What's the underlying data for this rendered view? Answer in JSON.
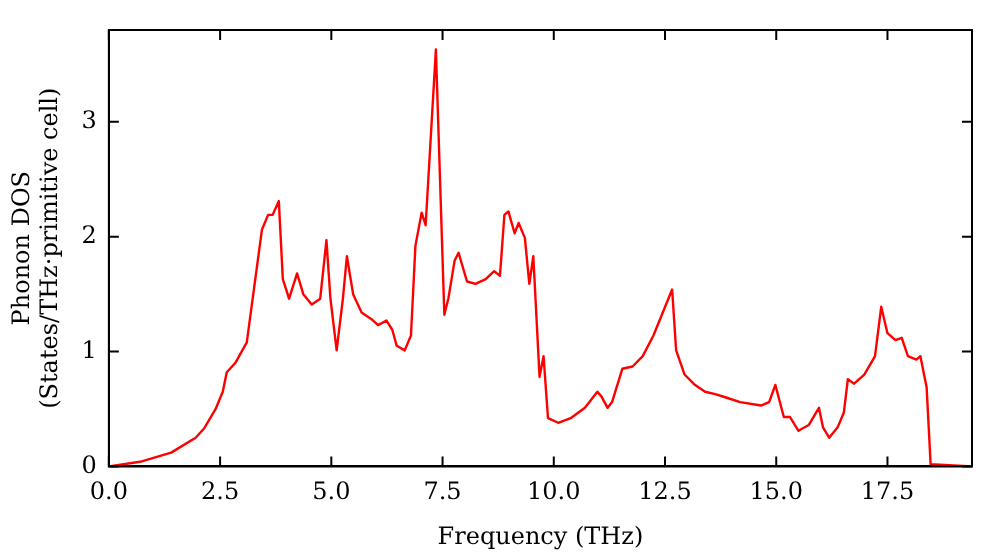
{
  "chart_data": {
    "type": "line",
    "xlabel": "Frequency (THz)",
    "ylabel": "Phonon DOS\n(States/THz·primitive cell)",
    "xlim": [
      0,
      19.4
    ],
    "ylim": [
      0,
      3.8
    ],
    "xticks": [
      {
        "value": 0,
        "label": "0.0"
      },
      {
        "value": 2.5,
        "label": "2.5"
      },
      {
        "value": 5,
        "label": "5.0"
      },
      {
        "value": 7.5,
        "label": "7.5"
      },
      {
        "value": 10,
        "label": "10.0"
      },
      {
        "value": 12.5,
        "label": "12.5"
      },
      {
        "value": 15,
        "label": "15.0"
      },
      {
        "value": 17.5,
        "label": "17.5"
      }
    ],
    "yticks": [
      0,
      1,
      2,
      3
    ],
    "grid": false,
    "legend": false,
    "marker": "none",
    "line_style": "solid",
    "series": [
      {
        "color": "#ff0000",
        "x": [
          0,
          0.7,
          1.4,
          1.95,
          2.14,
          2.4,
          2.56,
          2.65,
          2.84,
          3.1,
          3.44,
          3.58,
          3.68,
          3.82,
          3.91,
          4.05,
          4.23,
          4.37,
          4.56,
          4.75,
          4.89,
          4.98,
          5.12,
          5.26,
          5.35,
          5.49,
          5.68,
          5.91,
          6.05,
          6.24,
          6.37,
          6.47,
          6.65,
          6.79,
          6.89,
          7.03,
          7.12,
          7.35,
          7.54,
          7.63,
          7.77,
          7.86,
          8.05,
          8.24,
          8.47,
          8.66,
          8.79,
          8.89,
          8.98,
          9.12,
          9.21,
          9.35,
          9.45,
          9.54,
          9.68,
          9.77,
          9.87,
          10.1,
          10.38,
          10.7,
          10.98,
          11.07,
          11.21,
          11.31,
          11.54,
          11.77,
          12.0,
          12.24,
          12.66,
          12.75,
          12.94,
          13.17,
          13.4,
          13.63,
          13.87,
          14.19,
          14.66,
          14.84,
          14.98,
          15.17,
          15.31,
          15.5,
          15.73,
          15.96,
          16.05,
          16.19,
          16.38,
          16.52,
          16.61,
          16.75,
          16.98,
          17.22,
          17.36,
          17.5,
          17.68,
          17.82,
          17.96,
          18.15,
          18.24,
          18.38,
          18.47,
          19.4
        ],
        "values": [
          0,
          0.04,
          0.12,
          0.25,
          0.33,
          0.5,
          0.65,
          0.82,
          0.9,
          1.08,
          2.06,
          2.19,
          2.19,
          2.31,
          1.63,
          1.46,
          1.68,
          1.5,
          1.41,
          1.46,
          1.97,
          1.46,
          1.01,
          1.46,
          1.83,
          1.5,
          1.34,
          1.28,
          1.23,
          1.27,
          1.19,
          1.05,
          1.01,
          1.14,
          1.92,
          2.21,
          2.1,
          3.63,
          1.32,
          1.46,
          1.79,
          1.86,
          1.61,
          1.59,
          1.63,
          1.7,
          1.66,
          2.19,
          2.22,
          2.03,
          2.12,
          1.99,
          1.59,
          1.83,
          0.78,
          0.96,
          0.42,
          0.38,
          0.42,
          0.51,
          0.65,
          0.61,
          0.51,
          0.56,
          0.85,
          0.87,
          0.96,
          1.14,
          1.54,
          1.01,
          0.8,
          0.71,
          0.65,
          0.63,
          0.6,
          0.56,
          0.53,
          0.56,
          0.71,
          0.43,
          0.43,
          0.31,
          0.36,
          0.51,
          0.34,
          0.25,
          0.34,
          0.47,
          0.76,
          0.72,
          0.8,
          0.96,
          1.39,
          1.16,
          1.1,
          1.12,
          0.96,
          0.93,
          0.96,
          0.69,
          0.02,
          0
        ]
      }
    ]
  }
}
